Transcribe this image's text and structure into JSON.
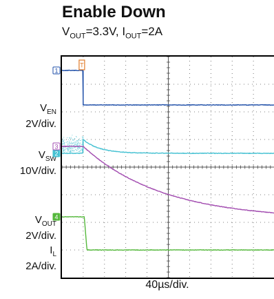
{
  "chart_data": {
    "type": "line",
    "title": "Enable Down",
    "subtitle": {
      "v": "V",
      "v_sub": "OUT",
      "v_val": "=3.3V, ",
      "i": "I",
      "i_sub": "OUT",
      "i_val": "=2A"
    },
    "xlabel": "40µs/div.",
    "time_per_div_us": 40,
    "divisions": {
      "x": 10,
      "y": 8
    },
    "trigger_marker": "T",
    "grid": true,
    "channels": [
      {
        "marker": "1",
        "name_main": "V",
        "name_sub": "EN",
        "scale": "2V/div.",
        "color": "#1f4fa8",
        "level_before_div": 7.5,
        "level_after_div": 6.25,
        "transition_time_us": 40
      },
      {
        "marker": "2",
        "name_main": "V",
        "name_sub": "SW",
        "scale": "10V/div.",
        "color": "#45c1d2",
        "level_before_div": 4.5,
        "level_after_div": 4.5,
        "transition_time_us": 40
      },
      {
        "marker": "3",
        "name_main": "V",
        "name_sub": "OUT",
        "scale": "2V/div.",
        "color": "#a24cb0",
        "level_before_div": 4.75,
        "level_after_div": 2.1,
        "transition_time_us": 40
      },
      {
        "marker": "4",
        "name_main": "I",
        "name_sub": "L",
        "scale": "2A/div.",
        "color": "#55b83c",
        "level_before_div": 2.2,
        "level_after_div": 1.0,
        "transition_time_us": 42
      }
    ]
  }
}
